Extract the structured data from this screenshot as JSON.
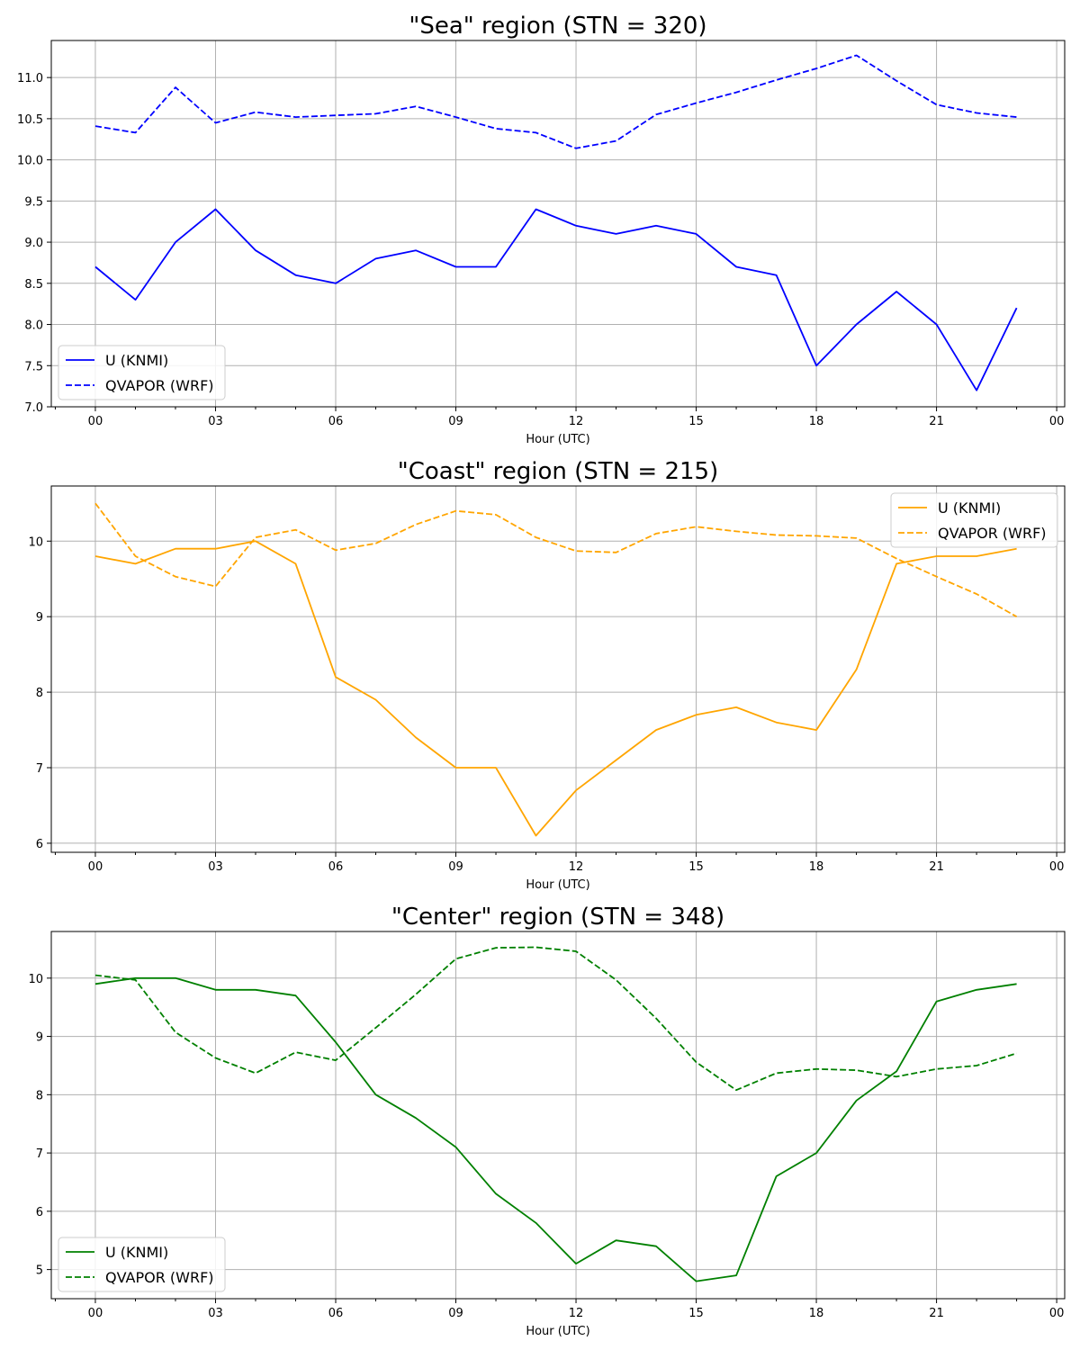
{
  "chart_data": [
    {
      "type": "line",
      "title": "\"Sea\" region (STN = 320)",
      "xlabel": "Hour (UTC)",
      "ylabel": "",
      "x_tick_labels": [
        "00",
        "03",
        "06",
        "09",
        "12",
        "15",
        "18",
        "21",
        "00"
      ],
      "xlim": [
        -1.1,
        24.2
      ],
      "ylim": [
        7.0,
        11.45
      ],
      "y_ticks": [
        7.0,
        7.5,
        8.0,
        8.5,
        9.0,
        9.5,
        10.0,
        10.5,
        11.0
      ],
      "y_tick_labels": [
        "7.0",
        "7.5",
        "8.0",
        "8.5",
        "9.0",
        "9.5",
        "10.0",
        "10.5",
        "11.0"
      ],
      "grid": true,
      "legend_position": "bottom-left",
      "color": "#0000ff",
      "x": [
        0,
        1,
        2,
        3,
        4,
        5,
        6,
        7,
        8,
        9,
        10,
        11,
        12,
        13,
        14,
        15,
        16,
        17,
        18,
        19,
        20,
        21,
        22,
        23
      ],
      "series": [
        {
          "name": "U (KNMI)",
          "style": "solid",
          "values": [
            8.7,
            8.3,
            9.0,
            9.4,
            8.9,
            8.6,
            8.5,
            8.8,
            8.9,
            8.7,
            8.7,
            9.4,
            9.2,
            9.1,
            9.2,
            9.1,
            8.7,
            8.6,
            7.5,
            8.0,
            8.4,
            8.0,
            7.2,
            8.2
          ]
        },
        {
          "name": "QVAPOR (WRF)",
          "style": "dashed",
          "values": [
            10.41,
            10.33,
            10.88,
            10.45,
            10.58,
            10.52,
            10.54,
            10.56,
            10.65,
            10.52,
            10.38,
            10.33,
            10.14,
            10.23,
            10.55,
            10.69,
            10.82,
            10.97,
            11.11,
            11.27,
            10.96,
            10.67,
            10.57,
            10.52
          ]
        }
      ]
    },
    {
      "type": "line",
      "title": "\"Coast\" region (STN = 215)",
      "xlabel": "Hour (UTC)",
      "ylabel": "",
      "x_tick_labels": [
        "00",
        "03",
        "06",
        "09",
        "12",
        "15",
        "18",
        "21",
        "00"
      ],
      "xlim": [
        -1.1,
        24.2
      ],
      "ylim": [
        5.88,
        10.73
      ],
      "y_ticks": [
        6,
        7,
        8,
        9,
        10
      ],
      "y_tick_labels": [
        "6",
        "7",
        "8",
        "9",
        "10"
      ],
      "grid": true,
      "legend_position": "top-right",
      "color": "#ffa500",
      "x": [
        0,
        1,
        2,
        3,
        4,
        5,
        6,
        7,
        8,
        9,
        10,
        11,
        12,
        13,
        14,
        15,
        16,
        17,
        18,
        19,
        20,
        21,
        22,
        23
      ],
      "series": [
        {
          "name": "U (KNMI)",
          "style": "solid",
          "values": [
            9.8,
            9.7,
            9.9,
            9.9,
            10.0,
            9.7,
            8.2,
            7.9,
            7.4,
            7.0,
            7.0,
            6.1,
            6.7,
            7.1,
            7.5,
            7.7,
            7.8,
            7.6,
            7.5,
            8.3,
            9.7,
            9.8,
            9.8,
            9.9
          ]
        },
        {
          "name": "QVAPOR (WRF)",
          "style": "dashed",
          "values": [
            10.5,
            9.8,
            9.53,
            9.4,
            10.05,
            10.15,
            9.88,
            9.97,
            10.22,
            10.4,
            10.35,
            10.05,
            9.87,
            9.85,
            10.1,
            10.19,
            10.13,
            10.08,
            10.07,
            10.04,
            9.77,
            9.53,
            9.3,
            9.0
          ]
        }
      ]
    },
    {
      "type": "line",
      "title": "\"Center\" region (STN = 348)",
      "xlabel": "Hour (UTC)",
      "ylabel": "",
      "x_tick_labels": [
        "00",
        "03",
        "06",
        "09",
        "12",
        "15",
        "18",
        "21",
        "00"
      ],
      "xlim": [
        -1.1,
        24.2
      ],
      "ylim": [
        4.5,
        10.8
      ],
      "y_ticks": [
        5,
        6,
        7,
        8,
        9,
        10
      ],
      "y_tick_labels": [
        "5",
        "6",
        "7",
        "8",
        "9",
        "10"
      ],
      "grid": true,
      "legend_position": "bottom-left",
      "color": "#008000",
      "x": [
        0,
        1,
        2,
        3,
        4,
        5,
        6,
        7,
        8,
        9,
        10,
        11,
        12,
        13,
        14,
        15,
        16,
        17,
        18,
        19,
        20,
        21,
        22,
        23
      ],
      "series": [
        {
          "name": "U (KNMI)",
          "style": "solid",
          "values": [
            9.9,
            10.0,
            10.0,
            9.8,
            9.8,
            9.7,
            8.9,
            8.0,
            7.6,
            7.1,
            6.3,
            5.8,
            5.1,
            5.5,
            5.4,
            4.8,
            4.9,
            6.6,
            7.0,
            7.9,
            8.4,
            9.6,
            9.8,
            9.9
          ]
        },
        {
          "name": "QVAPOR (WRF)",
          "style": "dashed",
          "values": [
            10.05,
            9.97,
            9.07,
            8.63,
            8.37,
            8.73,
            8.59,
            9.15,
            9.72,
            10.33,
            10.52,
            10.53,
            10.46,
            9.97,
            9.31,
            8.56,
            8.08,
            8.37,
            8.44,
            8.42,
            8.31,
            8.44,
            8.5,
            8.71
          ]
        }
      ]
    }
  ]
}
